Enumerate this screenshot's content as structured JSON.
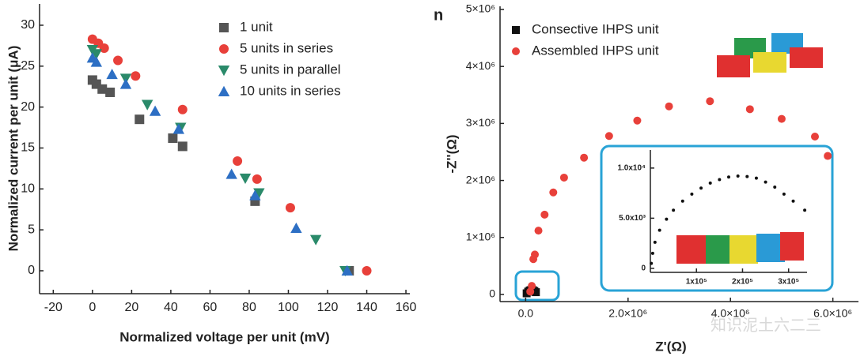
{
  "chart_data": [
    {
      "type": "scatter",
      "x_label": "Normalized voltage per unit (mV)",
      "y_label": "Normalized current per unit (μA)",
      "xlim": [
        -27,
        162
      ],
      "xticks": [
        -20,
        0,
        20,
        40,
        60,
        80,
        100,
        120,
        140,
        160
      ],
      "ylim": [
        -2.8,
        32.6
      ],
      "yticks": [
        0,
        5,
        10,
        15,
        20,
        25,
        30
      ],
      "legend": "upper right",
      "series": [
        {
          "name": "1 unit",
          "color": "#555555",
          "marker": "square",
          "x": [
            0,
            2,
            5,
            9,
            24,
            41,
            46,
            83,
            131
          ],
          "values": [
            23.3,
            22.8,
            22.2,
            21.8,
            18.5,
            16.2,
            15.2,
            8.5,
            0
          ]
        },
        {
          "name": "5 units in series",
          "color": "#e8403a",
          "marker": "circle",
          "x": [
            0,
            3,
            6,
            13,
            22,
            46,
            74,
            84,
            101,
            140
          ],
          "values": [
            28.3,
            27.8,
            27.2,
            25.7,
            23.8,
            19.7,
            13.4,
            11.2,
            7.7,
            0
          ]
        },
        {
          "name": "5 units in parallel",
          "color": "#2a8a6a",
          "marker": "triangle-down",
          "x": [
            0,
            2,
            17,
            28,
            45,
            78,
            85,
            114,
            129
          ],
          "values": [
            27,
            26.5,
            23.5,
            20.3,
            17.5,
            11.3,
            9.5,
            3.8,
            0
          ]
        },
        {
          "name": "10 units in series",
          "color": "#2d6fc4",
          "marker": "triangle-up",
          "x": [
            0,
            2,
            10,
            17,
            32,
            44,
            71,
            83,
            104,
            130
          ],
          "values": [
            26,
            25.5,
            24,
            22.8,
            19.5,
            17.3,
            11.8,
            9.2,
            5.2,
            0
          ]
        }
      ]
    },
    {
      "type": "scatter",
      "panel_label": "n",
      "x_label": "Z'(Ω)",
      "y_label": "-Z''(Ω)",
      "xlim": [
        -500000,
        6500000
      ],
      "xticks": [
        {
          "value": 0,
          "label": "0.0"
        },
        {
          "value": 2000000,
          "label": "2.0×10⁶"
        },
        {
          "value": 4000000,
          "label": "4.0×10⁶"
        },
        {
          "value": 6000000,
          "label": "6.0×10⁶"
        }
      ],
      "ylim": [
        -125000,
        5055000
      ],
      "yticks": [
        0,
        {
          "value": 1000000,
          "label": "1×10⁶"
        },
        {
          "value": 2000000,
          "label": "2×10⁶"
        },
        {
          "value": 3000000,
          "label": "3×10⁶"
        },
        {
          "value": 4000000,
          "label": "4×10⁶"
        },
        {
          "value": 5000000,
          "label": "5×10⁶"
        }
      ],
      "legend": "upper left",
      "series": [
        {
          "name": "Consective IHPS unit",
          "color": "#111111",
          "marker": "square",
          "x": [
            20000,
            50000,
            80000,
            110000,
            140000,
            170000,
            200000
          ],
          "values": [
            20000,
            50000,
            70000,
            80000,
            75000,
            60000,
            40000
          ]
        },
        {
          "name": "Assembled IHPS unit",
          "color": "#e8403a",
          "marker": "circle",
          "x": [
            90000,
            120000,
            150000,
            180000,
            250000,
            370000,
            540000,
            750000,
            1140000,
            1630000,
            2180000,
            2800000,
            3600000,
            4380000,
            5000000,
            5650000,
            5900000
          ],
          "values": [
            50000,
            150000,
            620000,
            700000,
            1120000,
            1400000,
            1790000,
            2050000,
            2400000,
            2780000,
            3050000,
            3300000,
            3390000,
            3250000,
            3080000,
            2770000,
            2430000
          ]
        }
      ]
    },
    {
      "type": "scatter",
      "xlim": [
        0,
        340000
      ],
      "xticks": [
        {
          "value": 100000,
          "label": "1x10⁵"
        },
        {
          "value": 200000,
          "label": "2x10⁵"
        },
        {
          "value": 300000,
          "label": "3x10⁵"
        }
      ],
      "ylim": [
        -400,
        11800
      ],
      "yticks": [
        0,
        {
          "value": 5000,
          "label": "5.0x10³"
        },
        {
          "value": 10000,
          "label": "1.0x10⁴"
        }
      ],
      "series": [
        {
          "color": "#111111",
          "marker": "dot",
          "x": [
            2000,
            5000,
            10000,
            20000,
            35000,
            50000,
            70000,
            90000,
            110000,
            130000,
            150000,
            170000,
            190000,
            210000,
            230000,
            250000,
            270000,
            290000,
            310000,
            335000
          ],
          "values": [
            500,
            1500,
            2600,
            3800,
            4900,
            5800,
            6700,
            7400,
            8000,
            8500,
            8850,
            9100,
            9200,
            9150,
            9000,
            8600,
            8100,
            7400,
            6700,
            5800
          ]
        }
      ]
    }
  ],
  "watermark": "知识泥土六二三"
}
